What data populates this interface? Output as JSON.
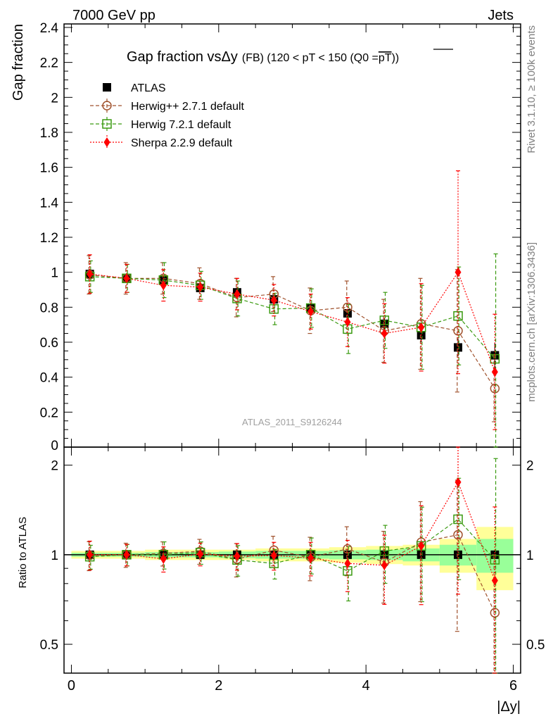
{
  "header": {
    "energy_label": "7000 GeV pp",
    "category_label": "Jets"
  },
  "side_labels": {
    "rivet": "Rivet 3.1.10, ≥ 100k events",
    "mcplots": "mcplots.cern.ch [arXiv:1306.3436]"
  },
  "colors": {
    "atlas": "#000000",
    "herwigpp": "#a0522d",
    "herwig7": "#3a9a10",
    "sherpa": "#ff0000",
    "band_yellow": "#ffff99",
    "band_green": "#99ff99"
  },
  "chart_data": {
    "type": "scatter",
    "title": "Gap fraction vsΔy",
    "title_suffix": "(FB) (120 < pT < 150 (Q0 =",
    "title_pt": "pT",
    "title_close": "))",
    "xlabel": "|Δy|",
    "ylabel": "Gap fraction",
    "ratio_ylabel": "Ratio to ATLAS",
    "watermark": "ATLAS_2011_S9126244",
    "xlim": [
      -0.1,
      6.1
    ],
    "ylim": [
      0,
      2.42
    ],
    "ratio_ylim": [
      0.4,
      2.3
    ],
    "x_ticks": [
      "0",
      "2",
      "4",
      "6"
    ],
    "y_ticks": [
      "0",
      "0.2",
      "0.4",
      "0.6",
      "0.8",
      "1",
      "1.2",
      "1.4",
      "1.6",
      "1.8",
      "2",
      "2.2",
      "2.4"
    ],
    "ratio_ticks": [
      "0.5",
      "1",
      "2"
    ],
    "x": [
      0.25,
      0.75,
      1.25,
      1.75,
      2.25,
      2.75,
      3.25,
      3.75,
      4.25,
      4.75,
      5.25,
      5.75
    ],
    "series": [
      {
        "name": "ATLAS",
        "key": "atlas",
        "values": [
          0.99,
          0.965,
          0.955,
          0.91,
          0.885,
          0.845,
          0.795,
          0.765,
          0.705,
          0.64,
          0.57,
          0.525
        ],
        "err": [
          0.015,
          0.015,
          0.015,
          0.015,
          0.02,
          0.02,
          0.025,
          0.025,
          0.035,
          0.04,
          0.05,
          0.07
        ]
      },
      {
        "name": "Herwig++ 2.7.1 default",
        "key": "herwigpp",
        "values": [
          0.985,
          0.965,
          0.965,
          0.935,
          0.855,
          0.875,
          0.78,
          0.8,
          0.665,
          0.705,
          0.665,
          0.335
        ],
        "err": [
          0.11,
          0.09,
          0.09,
          0.09,
          0.11,
          0.1,
          0.13,
          0.15,
          0.18,
          0.26,
          0.35,
          0.19
        ]
      },
      {
        "name": "Herwig 7.2.1 default",
        "key": "herwig7",
        "values": [
          0.975,
          0.965,
          0.955,
          0.925,
          0.85,
          0.79,
          0.795,
          0.675,
          0.725,
          0.685,
          0.75,
          0.505
        ],
        "err": [
          0.09,
          0.08,
          0.1,
          0.08,
          0.1,
          0.09,
          0.11,
          0.14,
          0.16,
          0.24,
          0.28,
          0.6
        ]
      },
      {
        "name": "Sherpa 2.2.9 default",
        "key": "sherpa",
        "values": [
          0.99,
          0.965,
          0.925,
          0.915,
          0.875,
          0.84,
          0.775,
          0.715,
          0.65,
          0.685,
          1.0,
          0.43
        ],
        "err": [
          0.11,
          0.08,
          0.09,
          0.08,
          0.09,
          0.09,
          0.1,
          0.14,
          0.17,
          0.25,
          0.58,
          0.33
        ]
      }
    ],
    "ratio_band_yellow": [
      0.03,
      0.03,
      0.04,
      0.04,
      0.04,
      0.05,
      0.05,
      0.06,
      0.07,
      0.08,
      0.13,
      0.24
    ],
    "ratio_band_green": [
      0.015,
      0.015,
      0.02,
      0.02,
      0.025,
      0.03,
      0.03,
      0.035,
      0.04,
      0.05,
      0.08,
      0.13
    ]
  }
}
